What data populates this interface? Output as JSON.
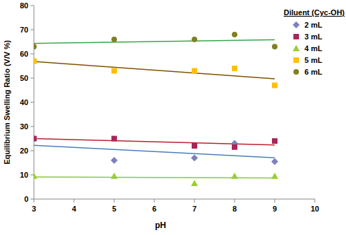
{
  "chart_data": {
    "type": "scatter",
    "x_label": "pH",
    "y_label": "Equilibrium Swelling Ratio (V/V %)",
    "legend_title": "Diluent (Cyc-OH)",
    "x": [
      3,
      5,
      7,
      8,
      9
    ],
    "series": [
      {
        "name": "2 mL",
        "color": "#7f7fbf",
        "marker": "diamond",
        "line_style": "trendline",
        "values": [
          25,
          16,
          17,
          23,
          15.5
        ]
      },
      {
        "name": "3 mL",
        "color": "#a8265a",
        "marker": "square",
        "line_style": "trendline",
        "values": [
          25,
          25,
          22,
          21.5,
          24
        ]
      },
      {
        "name": "4 mL",
        "color": "#9acd32",
        "marker": "triangle",
        "line_style": "trendline",
        "values": [
          9.5,
          9.5,
          6.5,
          9.5,
          9.5
        ]
      },
      {
        "name": "5 mL",
        "color": "#ffc000",
        "marker": "square",
        "line_style": "trendline",
        "values": [
          57,
          53,
          53,
          54,
          47
        ]
      },
      {
        "name": "6 mL",
        "color": "#808020",
        "marker": "circle",
        "line_style": "trendline",
        "values": [
          63,
          66,
          66,
          68,
          63
        ]
      }
    ],
    "xlim": [
      3,
      10
    ],
    "xticks": [
      3,
      4,
      5,
      6,
      7,
      8,
      9,
      10
    ],
    "ylim": [
      0,
      80
    ],
    "yticks": [
      0,
      10,
      20,
      30,
      40,
      50,
      60,
      70,
      80
    ],
    "grid": false,
    "legend": "right"
  }
}
